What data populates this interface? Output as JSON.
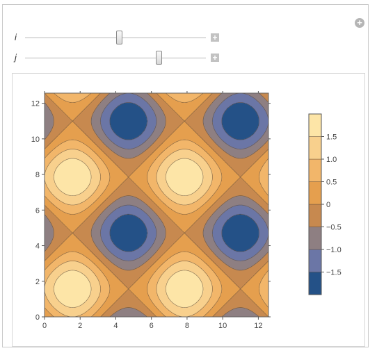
{
  "controls": {
    "slider_i": {
      "label": "i",
      "value_fraction": 0.52
    },
    "slider_j": {
      "label": "j",
      "value_fraction": 0.74
    },
    "expand_icon": "plus-icon",
    "add_icon": "plus-circle-icon"
  },
  "chart_data": {
    "type": "contour",
    "function": "sin(x)+sin(y) style pattern",
    "xlim": [
      0,
      12.57
    ],
    "ylim": [
      0,
      12.57
    ],
    "x_ticks": [
      "0",
      "2",
      "4",
      "6",
      "8",
      "10",
      "12"
    ],
    "y_ticks": [
      "0",
      "2",
      "4",
      "6",
      "8",
      "10",
      "12"
    ],
    "legend_ticks": [
      "1.5",
      "1.0",
      "0.5",
      "0",
      "−0.5",
      "−1.0",
      "−1.5"
    ],
    "legend_range": [
      -2,
      2
    ],
    "colors": {
      "c_high": "#fde5a7",
      "c_1_0": "#f8d08d",
      "c_0_5": "#f2b66a",
      "c_0": "#e59f4e",
      "c_m0_5": "#c7894f",
      "c_m1_0": "#8e7f82",
      "c_m1_5": "#6b76a6",
      "c_low": "#245187"
    },
    "title": "",
    "xlabel": "",
    "ylabel": ""
  }
}
